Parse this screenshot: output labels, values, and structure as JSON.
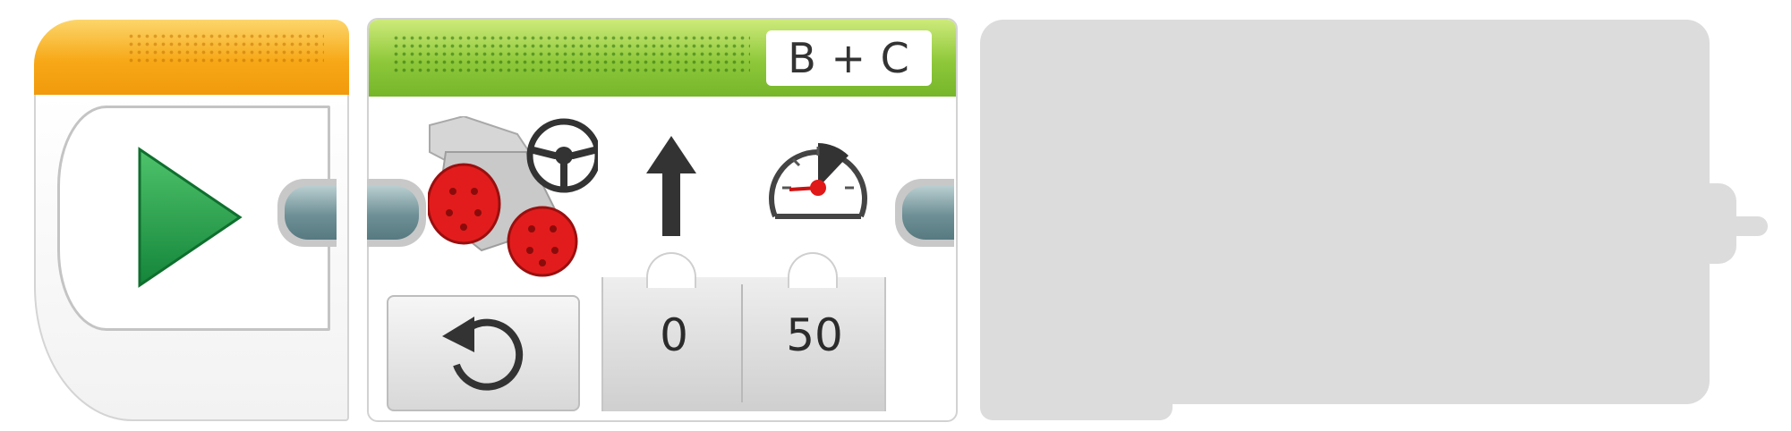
{
  "program": {
    "start_block": {
      "name": "Start",
      "icon": "play-triangle-icon",
      "color": "#f7a817"
    },
    "move_steering_block": {
      "header_color": "#8ec83a",
      "port": "B + C",
      "mode_icon": "rotate-icon",
      "motor_icon": "steering-motor-icon",
      "parameters": [
        {
          "icon": "up-arrow-icon",
          "value": "0"
        },
        {
          "icon": "speedometer-icon",
          "value": "50"
        }
      ]
    },
    "placeholder_block": {
      "color": "#dcdcdc"
    }
  }
}
